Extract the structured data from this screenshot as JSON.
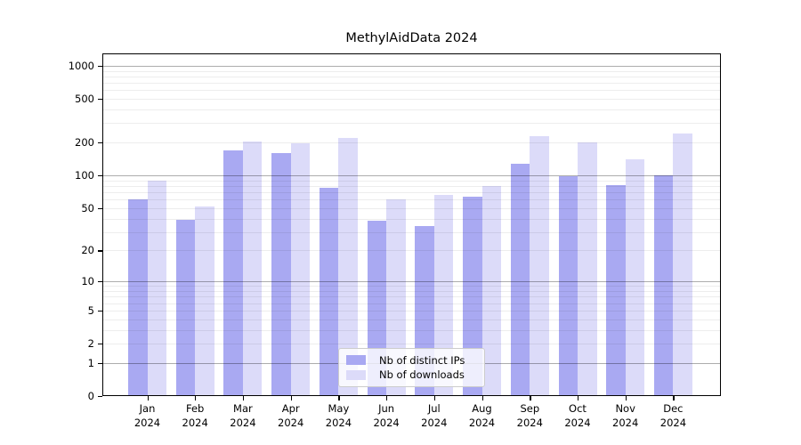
{
  "title": "MethylAidData 2024",
  "legend": {
    "items": [
      {
        "label": "Nb of distinct IPs"
      },
      {
        "label": "Nb of downloads"
      }
    ]
  },
  "chart_data": {
    "type": "bar",
    "title": "MethylAidData 2024",
    "categories": [
      "Jan",
      "Feb",
      "Mar",
      "Apr",
      "May",
      "Jun",
      "Jul",
      "Aug",
      "Sep",
      "Oct",
      "Nov",
      "Dec"
    ],
    "year": "2024",
    "series": [
      {
        "name": "Nb of distinct IPs",
        "color": "#a9a9f2",
        "values": [
          60,
          39,
          168,
          160,
          77,
          38,
          34,
          64,
          127,
          98,
          81,
          100
        ]
      },
      {
        "name": "Nb of downloads",
        "color": "#dcdbf9",
        "values": [
          90,
          52,
          204,
          196,
          222,
          60,
          66,
          80,
          230,
          199,
          140,
          242
        ]
      }
    ],
    "xlabel": "",
    "ylabel": "",
    "yscale": "log1p",
    "ylim": [
      0,
      1294
    ],
    "yticks": [
      0,
      1,
      2,
      5,
      10,
      20,
      50,
      100,
      200,
      500,
      1000
    ],
    "ymajor_grid": [
      1,
      10,
      100,
      1000
    ],
    "grid": true,
    "legend_position": "lower center",
    "bar_edge": "none"
  }
}
